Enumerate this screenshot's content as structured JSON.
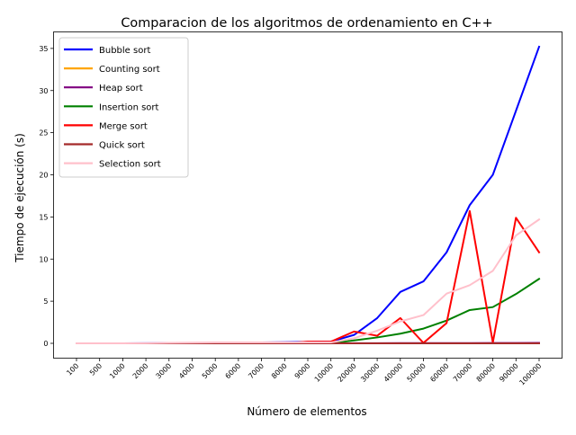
{
  "chart_data": {
    "type": "line",
    "title": "Comparacion de los algoritmos de ordenamiento en C++",
    "xlabel": "Número de elementos",
    "ylabel": "Tiempo de ejecución (s)",
    "categories": [
      "100",
      "500",
      "1000",
      "2000",
      "3000",
      "4000",
      "5000",
      "6000",
      "7000",
      "8000",
      "9000",
      "10000",
      "20000",
      "30000",
      "40000",
      "50000",
      "60000",
      "70000",
      "80000",
      "90000",
      "100000"
    ],
    "ylim": [
      -1.76,
      36.96
    ],
    "yticks": [
      0,
      5,
      10,
      15,
      20,
      25,
      30,
      35
    ],
    "ytick_labels": [
      "0",
      "5",
      "10",
      "15",
      "20",
      "25",
      "30",
      "35"
    ],
    "grid": false,
    "legend_position": "top-left",
    "series": [
      {
        "name": "Bubble sort",
        "color": "#0000ff",
        "values": [
          0,
          0,
          0,
          0.01,
          0.02,
          0.03,
          0.05,
          0.07,
          0.1,
          0.13,
          0.17,
          0.2,
          1.0,
          3.0,
          6.1,
          7.35,
          10.8,
          16.4,
          20.0,
          27.6,
          35.2
        ]
      },
      {
        "name": "Counting sort",
        "color": "#ffa500",
        "values": [
          0,
          0,
          0,
          0,
          0,
          0,
          0,
          0,
          0,
          0,
          0,
          0,
          0,
          0,
          0,
          0,
          0,
          0,
          0,
          0,
          0
        ]
      },
      {
        "name": "Heap sort",
        "color": "#800080",
        "values": [
          0,
          0,
          0,
          0,
          0,
          0,
          0,
          0,
          0,
          0,
          0,
          0,
          0.01,
          0.01,
          0.02,
          0.02,
          0.03,
          0.03,
          0.04,
          0.04,
          0.05
        ]
      },
      {
        "name": "Insertion sort",
        "color": "#008000",
        "values": [
          0,
          0,
          0,
          0,
          0,
          0,
          0,
          0,
          0,
          0,
          0,
          0.02,
          0.35,
          0.7,
          1.15,
          1.75,
          2.7,
          3.95,
          4.3,
          5.85,
          7.65
        ]
      },
      {
        "name": "Merge sort",
        "color": "#ff0000",
        "values": [
          0,
          0,
          0,
          0,
          0,
          0,
          0,
          0,
          0,
          0,
          0.2,
          0.2,
          1.4,
          0.9,
          3.0,
          0.05,
          2.4,
          15.7,
          0.1,
          14.9,
          10.8
        ]
      },
      {
        "name": "Quick sort",
        "color": "#a52a2a",
        "values": [
          0,
          0,
          0,
          0,
          0,
          0,
          0,
          0,
          0,
          0,
          0,
          0,
          0,
          0,
          0,
          0,
          0,
          0,
          0,
          0,
          0
        ]
      },
      {
        "name": "Selection sort",
        "color": "#ffc0cb",
        "values": [
          0,
          0,
          0,
          0.01,
          0.05,
          0.08,
          0.1,
          0.1,
          0.1,
          0.1,
          0.1,
          0.1,
          0.6,
          1.5,
          2.6,
          3.35,
          5.9,
          6.9,
          8.6,
          12.8,
          14.7
        ]
      }
    ]
  }
}
